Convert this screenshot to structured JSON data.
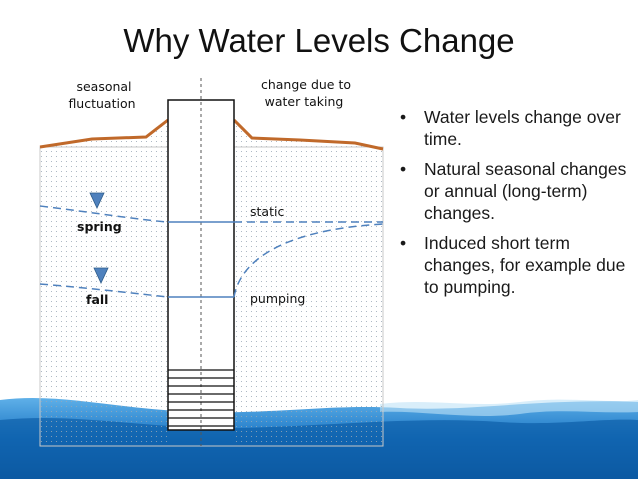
{
  "slide": {
    "title": "Why Water Levels Change"
  },
  "diagram": {
    "label_seasonal_1": "seasonal",
    "label_seasonal_2": "fluctuation",
    "label_change_1": "change due to",
    "label_change_2": "water taking",
    "label_spring": "spring",
    "label_fall": "fall",
    "label_static": "static",
    "label_pumping": "pumping",
    "colors": {
      "ground_surface": "#c0692a",
      "water_line": "#4f81bd",
      "triangle": "#4f81bd",
      "wave": "#1e6fb8"
    }
  },
  "bullets": [
    {
      "marker": "•",
      "text": "Water levels change over time."
    },
    {
      "marker": "•",
      "text": "Natural seasonal changes or annual (long-term) changes."
    },
    {
      "marker": "•",
      "text": "Induced short term changes, for example due to pumping."
    }
  ]
}
